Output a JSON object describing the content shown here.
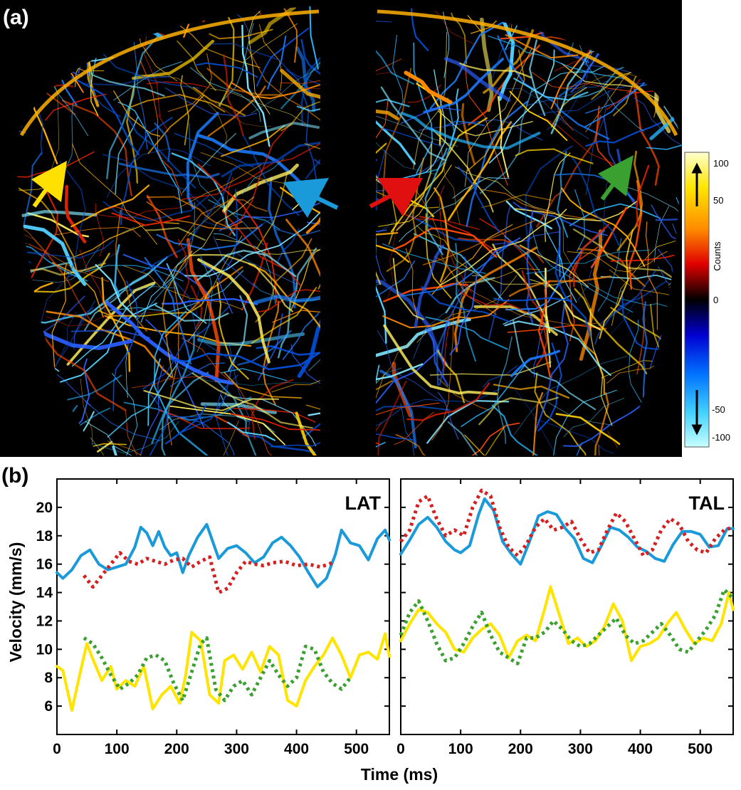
{
  "panel_a": {
    "label": "(a)",
    "colorbar": {
      "label": "Counts",
      "ticks": [
        "100",
        "50",
        "0",
        "-50",
        "-100"
      ],
      "tick_values": [
        100,
        50,
        0,
        -50,
        -100
      ],
      "colors": [
        "#ffffd0",
        "#ffe600",
        "#ff8c00",
        "#e00000",
        "#000000",
        "#0000d0",
        "#0070ff",
        "#40d0ff",
        "#c8ffff"
      ]
    },
    "arrows": [
      {
        "name": "yellow-arrow",
        "color": "#ffe000"
      },
      {
        "name": "blue-arrow",
        "color": "#1a9ad8"
      },
      {
        "name": "red-arrow",
        "color": "#e01010"
      },
      {
        "name": "green-arrow",
        "color": "#3aa030"
      }
    ]
  },
  "panel_b": {
    "label": "(b)",
    "ylabel": "Velocity (mm/s)",
    "xlabel": "Time (ms)"
  },
  "chart_data": [
    {
      "type": "line",
      "title": "LAT",
      "xlabel": "Time (ms)",
      "ylabel": "Velocity (mm/s)",
      "xlim": [
        0,
        555
      ],
      "ylim": [
        4,
        22
      ],
      "xticks": [
        0,
        100,
        200,
        300,
        400,
        500
      ],
      "yticks": [
        6,
        8,
        10,
        12,
        14,
        16,
        18,
        20
      ],
      "series": [
        {
          "color": "#1a9ad8",
          "style": "solid",
          "x": [
            0,
            10,
            25,
            40,
            55,
            70,
            85,
            100,
            115,
            130,
            140,
            150,
            160,
            170,
            180,
            190,
            200,
            210,
            220,
            235,
            250,
            260,
            270,
            285,
            300,
            315,
            330,
            345,
            360,
            375,
            390,
            405,
            420,
            435,
            450,
            465,
            475,
            490,
            505,
            520,
            535,
            548,
            555
          ],
          "y": [
            15.4,
            15.0,
            15.6,
            16.6,
            17.0,
            16.0,
            15.6,
            15.8,
            16.0,
            17.2,
            18.6,
            18.2,
            17.3,
            18.3,
            17.2,
            16.6,
            16.8,
            15.4,
            16.6,
            17.9,
            18.8,
            17.6,
            16.4,
            17.1,
            17.3,
            16.8,
            16.1,
            16.5,
            17.5,
            17.9,
            17.3,
            16.5,
            15.4,
            14.4,
            15.0,
            16.7,
            18.4,
            17.5,
            17.3,
            16.3,
            17.8,
            18.4,
            17.7
          ]
        },
        {
          "color": "#d42020",
          "style": "dotted",
          "x": [
            45,
            60,
            75,
            90,
            105,
            120,
            135,
            150,
            165,
            180,
            195,
            210,
            225,
            240,
            255,
            270,
            285,
            300,
            315,
            330,
            345,
            360,
            380,
            400,
            420,
            440,
            460
          ],
          "y": [
            15.2,
            14.4,
            15.2,
            16.0,
            16.8,
            16.2,
            16.0,
            16.4,
            16.2,
            16.0,
            16.3,
            16.4,
            15.8,
            16.2,
            16.5,
            14.0,
            14.3,
            15.4,
            16.2,
            16.0,
            15.9,
            16.1,
            16.2,
            15.9,
            16.0,
            15.8,
            16.1
          ]
        },
        {
          "color": "#ffe400",
          "style": "solid",
          "x": [
            0,
            10,
            25,
            40,
            50,
            60,
            75,
            90,
            100,
            115,
            130,
            145,
            160,
            175,
            190,
            205,
            215,
            225,
            240,
            255,
            270,
            280,
            295,
            310,
            325,
            340,
            355,
            370,
            385,
            400,
            415,
            430,
            445,
            460,
            475,
            490,
            505,
            520,
            535,
            548,
            555
          ],
          "y": [
            8.8,
            8.5,
            5.7,
            8.6,
            10.4,
            9.3,
            7.8,
            8.8,
            7.2,
            7.8,
            7.4,
            8.8,
            5.8,
            6.8,
            7.4,
            6.2,
            8.2,
            11.2,
            10.6,
            6.8,
            6.2,
            9.2,
            9.6,
            8.6,
            9.8,
            8.4,
            10.2,
            9.6,
            6.4,
            6.0,
            7.8,
            8.8,
            9.6,
            10.8,
            9.6,
            8.0,
            9.6,
            9.8,
            9.3,
            11.1,
            9.5
          ]
        },
        {
          "color": "#3aa030",
          "style": "dotted",
          "x": [
            45,
            60,
            75,
            90,
            105,
            120,
            135,
            150,
            165,
            180,
            195,
            210,
            225,
            240,
            250,
            265,
            280,
            295,
            310,
            325,
            340,
            355,
            370,
            385,
            400,
            415,
            430,
            445,
            460,
            475,
            490
          ],
          "y": [
            10.8,
            10.4,
            9.4,
            8.2,
            7.2,
            7.6,
            8.2,
            9.4,
            9.6,
            9.2,
            7.6,
            6.4,
            8.4,
            10.4,
            10.8,
            7.2,
            6.4,
            7.4,
            7.8,
            6.8,
            8.0,
            9.2,
            8.2,
            7.4,
            8.0,
            10.2,
            10.0,
            8.4,
            7.6,
            7.2,
            8.0
          ]
        }
      ]
    },
    {
      "type": "line",
      "title": "TAL",
      "xlabel": "Time (ms)",
      "ylabel": "Velocity (mm/s)",
      "xlim": [
        0,
        555
      ],
      "ylim": [
        4,
        22
      ],
      "xticks": [
        0,
        100,
        200,
        300,
        400,
        500
      ],
      "yticks": [
        6,
        8,
        10,
        12,
        14,
        16,
        18,
        20
      ],
      "series": [
        {
          "color": "#1a9ad8",
          "style": "solid",
          "x": [
            0,
            15,
            30,
            45,
            60,
            75,
            90,
            100,
            115,
            130,
            140,
            155,
            170,
            185,
            200,
            215,
            230,
            245,
            260,
            275,
            290,
            305,
            320,
            335,
            350,
            365,
            380,
            395,
            410,
            425,
            440,
            455,
            470,
            485,
            500,
            515,
            530,
            545,
            555
          ],
          "y": [
            16.7,
            17.7,
            18.8,
            19.3,
            18.6,
            17.6,
            17.0,
            16.8,
            17.3,
            19.5,
            20.6,
            19.8,
            17.6,
            16.7,
            16.0,
            17.6,
            19.4,
            19.7,
            19.5,
            18.5,
            17.8,
            16.4,
            16.1,
            17.3,
            18.6,
            18.4,
            17.9,
            17.2,
            16.9,
            16.4,
            16.2,
            17.4,
            18.3,
            18.3,
            18.1,
            17.2,
            17.3,
            18.5,
            18.5
          ]
        },
        {
          "color": "#d42020",
          "style": "dotted",
          "x": [
            0,
            15,
            30,
            45,
            60,
            75,
            90,
            105,
            120,
            135,
            150,
            165,
            180,
            195,
            210,
            225,
            240,
            255,
            270,
            285,
            300,
            315,
            330,
            345,
            360,
            375,
            390,
            405,
            420,
            435,
            450,
            465,
            480,
            495,
            510,
            525,
            540,
            555
          ],
          "y": [
            17.6,
            18.4,
            20.4,
            20.8,
            19.2,
            18.0,
            18.4,
            18.0,
            20.0,
            21.2,
            20.8,
            18.6,
            17.2,
            16.6,
            17.4,
            18.6,
            19.2,
            18.4,
            18.6,
            19.0,
            17.8,
            16.8,
            17.0,
            18.4,
            19.6,
            19.0,
            17.8,
            16.6,
            17.0,
            18.4,
            19.2,
            18.8,
            17.6,
            17.0,
            16.8,
            17.8,
            18.4,
            18.6
          ]
        },
        {
          "color": "#ffe400",
          "style": "solid",
          "x": [
            0,
            15,
            30,
            45,
            60,
            75,
            90,
            105,
            120,
            135,
            150,
            165,
            180,
            195,
            210,
            225,
            240,
            250,
            265,
            280,
            295,
            310,
            325,
            340,
            355,
            370,
            385,
            400,
            415,
            430,
            445,
            460,
            475,
            490,
            505,
            520,
            535,
            548,
            555
          ],
          "y": [
            10.6,
            11.8,
            12.8,
            12.6,
            11.8,
            11.2,
            10.0,
            9.8,
            10.8,
            11.4,
            11.8,
            11.0,
            9.4,
            10.6,
            11.0,
            10.6,
            12.8,
            14.4,
            12.4,
            10.4,
            10.8,
            10.2,
            10.6,
            11.6,
            13.2,
            12.0,
            9.2,
            10.2,
            10.4,
            10.8,
            11.8,
            12.6,
            11.4,
            10.4,
            10.8,
            10.6,
            11.8,
            14.0,
            12.8
          ]
        },
        {
          "color": "#3aa030",
          "style": "dotted",
          "x": [
            0,
            15,
            30,
            45,
            60,
            75,
            90,
            105,
            120,
            135,
            150,
            165,
            180,
            195,
            210,
            225,
            240,
            255,
            270,
            285,
            300,
            315,
            330,
            345,
            360,
            375,
            390,
            405,
            420,
            435,
            450,
            465,
            480,
            495,
            510,
            525,
            540,
            555
          ],
          "y": [
            11.0,
            12.6,
            13.4,
            12.0,
            10.4,
            9.2,
            9.4,
            10.4,
            11.6,
            12.6,
            11.0,
            9.8,
            9.4,
            9.0,
            10.8,
            10.8,
            11.2,
            12.0,
            11.4,
            10.6,
            10.2,
            10.4,
            11.0,
            11.6,
            12.2,
            11.0,
            10.4,
            10.6,
            11.2,
            11.8,
            11.0,
            10.0,
            9.8,
            10.6,
            11.4,
            12.4,
            14.2,
            13.6
          ]
        }
      ]
    }
  ]
}
